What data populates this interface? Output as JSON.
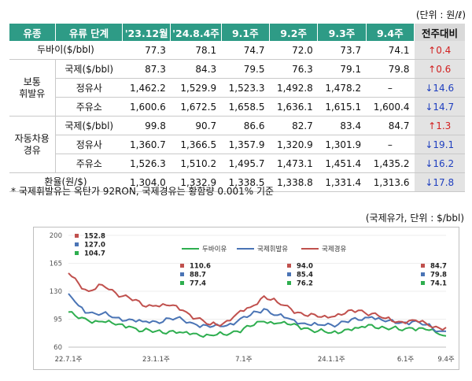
{
  "table": {
    "unit": "(단위 : 원/ℓ)",
    "headers": [
      "유종",
      "유류 단계",
      "'23.12월",
      "'24.8.4주",
      "9.1주",
      "9.2주",
      "9.3주",
      "9.4주",
      "전주대비"
    ],
    "rows": [
      {
        "category": "두바이($/bbl)",
        "values": [
          "77.3",
          "78.1",
          "74.7",
          "72.0",
          "73.7",
          "74.1"
        ],
        "change": "0.4",
        "change_dir": "up"
      },
      {
        "category": "보통\n휘발유",
        "stage": "국제($/bbl)",
        "values": [
          "87.3",
          "84.3",
          "79.5",
          "76.3",
          "79.1",
          "79.8"
        ],
        "change": "0.6",
        "change_dir": "up"
      },
      {
        "stage": "정유사",
        "values": [
          "1,462.2",
          "1,529.9",
          "1,523.3",
          "1,492.8",
          "1,478.2",
          "–"
        ],
        "change": "14.6",
        "change_dir": "down"
      },
      {
        "stage": "주유소",
        "values": [
          "1,600.6",
          "1,672.5",
          "1,658.5",
          "1,636.1",
          "1,615.1",
          "1,600.4"
        ],
        "change": "14.7",
        "change_dir": "down"
      },
      {
        "category": "자동차용\n경유",
        "stage": "국제($/bbl)",
        "values": [
          "99.8",
          "90.7",
          "86.6",
          "82.7",
          "83.4",
          "84.7"
        ],
        "change": "1.3",
        "change_dir": "up"
      },
      {
        "stage": "정유사",
        "values": [
          "1,360.7",
          "1,366.5",
          "1,357.9",
          "1,320.9",
          "1,301.9",
          "–"
        ],
        "change": "19.1",
        "change_dir": "down"
      },
      {
        "stage": "주유소",
        "values": [
          "1,526.3",
          "1,510.2",
          "1,495.7",
          "1,473.1",
          "1,451.4",
          "1,435.2"
        ],
        "change": "16.2",
        "change_dir": "down"
      },
      {
        "category": "환율(원/$)",
        "values": [
          "1,304.0",
          "1,332.9",
          "1,338.5",
          "1,338.8",
          "1,331.4",
          "1,313.6"
        ],
        "change": "17.8",
        "change_dir": "down"
      }
    ],
    "footnote": "* 국제휘발유는 옥탄가 92RON, 국제경유는 황함량 0.001% 기준",
    "arrows": {
      "up": "↑",
      "down": "↓"
    }
  },
  "chart_data": {
    "type": "line",
    "unit_label": "(국제유가, 단위 : $/bbl)",
    "x_ticks": [
      "22.7.1주",
      "23.1.1주",
      "7.1주",
      "24.1.1주",
      "6.1주",
      "9.4주"
    ],
    "x_tick_index": [
      0,
      26,
      52,
      78,
      100,
      112
    ],
    "ylim": [
      60,
      200
    ],
    "y_ticks": [
      60,
      95,
      130,
      165,
      200
    ],
    "n_points": 113,
    "series": [
      {
        "name": "두바이유",
        "color": "#2eae4f",
        "anchors": [
          [
            0,
            104
          ],
          [
            3,
            96
          ],
          [
            6,
            93
          ],
          [
            10,
            92
          ],
          [
            14,
            88
          ],
          [
            18,
            86
          ],
          [
            22,
            80
          ],
          [
            26,
            80
          ],
          [
            30,
            80
          ],
          [
            34,
            78
          ],
          [
            38,
            77
          ],
          [
            42,
            75
          ],
          [
            46,
            76
          ],
          [
            50,
            80
          ],
          [
            54,
            86
          ],
          [
            58,
            92
          ],
          [
            62,
            90
          ],
          [
            66,
            88
          ],
          [
            70,
            84
          ],
          [
            74,
            80
          ],
          [
            78,
            78
          ],
          [
            82,
            82
          ],
          [
            86,
            84
          ],
          [
            90,
            88
          ],
          [
            94,
            84
          ],
          [
            98,
            82
          ],
          [
            102,
            84
          ],
          [
            106,
            82
          ],
          [
            110,
            76
          ],
          [
            112,
            74.1
          ]
        ]
      },
      {
        "name": "국제휘발유",
        "color": "#4a74b5",
        "anchors": [
          [
            0,
            127
          ],
          [
            3,
            112
          ],
          [
            6,
            103
          ],
          [
            10,
            102
          ],
          [
            14,
            97
          ],
          [
            18,
            95
          ],
          [
            22,
            92
          ],
          [
            26,
            92
          ],
          [
            30,
            96
          ],
          [
            34,
            94
          ],
          [
            38,
            88
          ],
          [
            42,
            85
          ],
          [
            46,
            86
          ],
          [
            50,
            92
          ],
          [
            54,
            100
          ],
          [
            58,
            108
          ],
          [
            62,
            100
          ],
          [
            66,
            95
          ],
          [
            70,
            90
          ],
          [
            74,
            88
          ],
          [
            78,
            88
          ],
          [
            82,
            92
          ],
          [
            86,
            94
          ],
          [
            90,
            98
          ],
          [
            94,
            92
          ],
          [
            98,
            90
          ],
          [
            102,
            92
          ],
          [
            106,
            88
          ],
          [
            110,
            80
          ],
          [
            112,
            79.8
          ]
        ]
      },
      {
        "name": "국제경유",
        "color": "#c0504d",
        "anchors": [
          [
            0,
            152.8
          ],
          [
            3,
            140
          ],
          [
            6,
            130
          ],
          [
            10,
            138
          ],
          [
            14,
            128
          ],
          [
            18,
            122
          ],
          [
            22,
            112
          ],
          [
            26,
            112
          ],
          [
            30,
            112
          ],
          [
            34,
            106
          ],
          [
            38,
            96
          ],
          [
            42,
            88
          ],
          [
            46,
            90
          ],
          [
            50,
            102
          ],
          [
            54,
            110
          ],
          [
            58,
            124
          ],
          [
            62,
            116
          ],
          [
            66,
            108
          ],
          [
            70,
            100
          ],
          [
            74,
            98
          ],
          [
            78,
            98
          ],
          [
            82,
            102
          ],
          [
            86,
            106
          ],
          [
            90,
            102
          ],
          [
            94,
            96
          ],
          [
            98,
            92
          ],
          [
            102,
            94
          ],
          [
            106,
            90
          ],
          [
            110,
            84
          ],
          [
            112,
            84.7
          ]
        ]
      }
    ],
    "labels": [
      {
        "at": "start",
        "values": [
          "152.8",
          "127.0",
          "104.7"
        ]
      },
      {
        "at": "2023-peak",
        "values": [
          "110.6",
          "88.7",
          "77.4"
        ]
      },
      {
        "at": "2024-low",
        "values": [
          "94.0",
          "85.4",
          "76.2"
        ]
      },
      {
        "at": "latest",
        "values": [
          "84.7",
          "79.8",
          "74.1"
        ]
      }
    ]
  }
}
